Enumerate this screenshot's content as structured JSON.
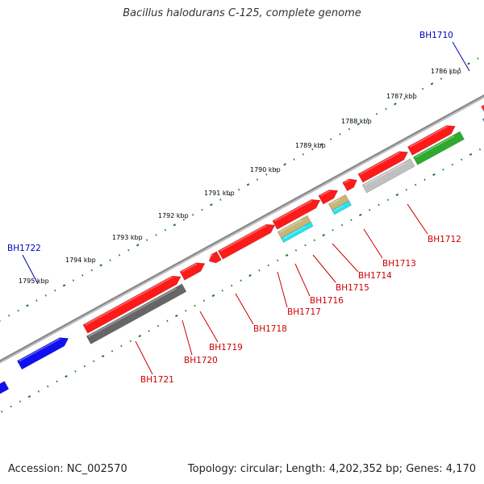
{
  "title": "Bacillus halodurans C-125, complete genome",
  "footer": {
    "accession": "Accession: NC_002570",
    "topology": "Topology: circular",
    "length": "Length: 4,202,352 bp",
    "genes": "Genes: 4,170"
  },
  "colors": {
    "backbone": "#8a8a8a",
    "tick": "#1f7a1f",
    "gene_red": "#ff1a1a",
    "gene_blue": "#1010ee",
    "gene_gray_dark": "#666666",
    "gene_gray_light": "#c0c0c0",
    "gene_green": "#2eaa2e",
    "gene_steelblue": "#4a7fb5",
    "gene_cyan": "#22e5f0",
    "gene_khaki": "#c8b676",
    "label_dark_red": "#cc0000",
    "label_blue": "#0000bb"
  },
  "kbp_labels": [
    "1786 kbp",
    "1787 kbp",
    "1788 kbp",
    "1789 kbp",
    "1790 kbp",
    "1791 kbp",
    "1792 kbp",
    "1793 kbp",
    "1794 kbp",
    "1795 kbp"
  ],
  "gene_labels": {
    "top": [
      "BH1710",
      "BH1722"
    ],
    "bottom": [
      "BH1712",
      "BH1713",
      "BH1714",
      "BH1715",
      "BH1716",
      "BH1717",
      "BH1718",
      "BH1719",
      "BH1720",
      "BH1721"
    ]
  }
}
